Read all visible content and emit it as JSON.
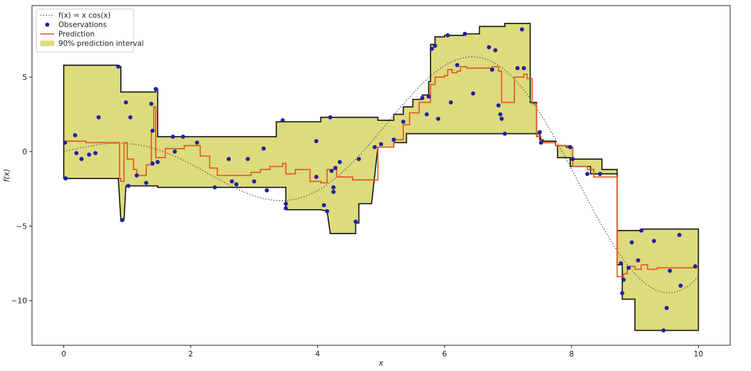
{
  "chart_data": {
    "type": "line",
    "xlabel": "x",
    "ylabel": "f(x)",
    "xlim": [
      -0.5,
      10.5
    ],
    "ylim": [
      -13,
      9.8
    ],
    "x_ticks": [
      0,
      2,
      4,
      6,
      8,
      10
    ],
    "y_ticks": [
      -10,
      -5,
      0,
      5
    ],
    "x_tick_labels": [
      "0",
      "2",
      "4",
      "6",
      "8",
      "10"
    ],
    "y_tick_labels": [
      "−10",
      "−5",
      "0",
      "5"
    ],
    "grid": false,
    "legend_placement": "top-left",
    "legend": [
      {
        "label": "f(x) = x cos(x)",
        "style": "dotted-line",
        "color": "#555555"
      },
      {
        "label": "Observations",
        "style": "marker",
        "color": "#1f1fa8"
      },
      {
        "label": "Prediction",
        "style": "line",
        "color": "#e0531c"
      },
      {
        "label": "90% prediction interval",
        "style": "fill",
        "color": "#dddb7c"
      }
    ],
    "true_function": {
      "name": "f(x) = x cos(x)",
      "x_range": [
        0,
        10
      ]
    },
    "observations": [
      [
        0.02,
        0.6
      ],
      [
        0.03,
        -1.8
      ],
      [
        0.18,
        1.1
      ],
      [
        0.2,
        -0.1
      ],
      [
        0.28,
        -0.5
      ],
      [
        0.4,
        -0.2
      ],
      [
        0.5,
        -0.1
      ],
      [
        0.55,
        2.3
      ],
      [
        0.86,
        5.7
      ],
      [
        0.92,
        -4.6
      ],
      [
        0.98,
        3.3
      ],
      [
        1.02,
        -2.3
      ],
      [
        1.05,
        2.3
      ],
      [
        1.15,
        -1.6
      ],
      [
        1.3,
        -2.1
      ],
      [
        1.38,
        3.2
      ],
      [
        1.4,
        -0.8
      ],
      [
        1.4,
        1.4
      ],
      [
        1.45,
        4.2
      ],
      [
        1.48,
        -0.7
      ],
      [
        1.72,
        1.0
      ],
      [
        1.75,
        0.0
      ],
      [
        1.88,
        1.0
      ],
      [
        2.1,
        0.6
      ],
      [
        2.38,
        -2.4
      ],
      [
        2.6,
        -0.5
      ],
      [
        2.65,
        -2.0
      ],
      [
        2.72,
        -2.2
      ],
      [
        2.9,
        -0.5
      ],
      [
        3.0,
        -2.0
      ],
      [
        3.15,
        0.2
      ],
      [
        3.2,
        -2.6
      ],
      [
        3.45,
        2.1
      ],
      [
        3.5,
        -3.5
      ],
      [
        3.5,
        -3.8
      ],
      [
        3.98,
        0.7
      ],
      [
        3.98,
        -1.7
      ],
      [
        4.1,
        -3.6
      ],
      [
        4.15,
        -4.0
      ],
      [
        4.2,
        2.3
      ],
      [
        4.22,
        -1.3
      ],
      [
        4.25,
        -2.4
      ],
      [
        4.25,
        -2.7
      ],
      [
        4.28,
        -1.1
      ],
      [
        4.35,
        -0.7
      ],
      [
        4.6,
        -4.7
      ],
      [
        4.65,
        -0.5
      ],
      [
        4.9,
        0.3
      ],
      [
        5.0,
        0.5
      ],
      [
        5.2,
        0.8
      ],
      [
        5.35,
        2.0
      ],
      [
        5.65,
        3.6
      ],
      [
        5.72,
        2.5
      ],
      [
        5.75,
        3.7
      ],
      [
        5.8,
        6.9
      ],
      [
        5.85,
        7.1
      ],
      [
        5.9,
        2.2
      ],
      [
        6.05,
        7.8
      ],
      [
        6.1,
        3.3
      ],
      [
        6.2,
        5.8
      ],
      [
        6.32,
        7.9
      ],
      [
        6.45,
        3.9
      ],
      [
        6.7,
        7.0
      ],
      [
        6.75,
        5.5
      ],
      [
        6.8,
        6.8
      ],
      [
        6.85,
        3.1
      ],
      [
        6.88,
        2.5
      ],
      [
        6.9,
        2.2
      ],
      [
        6.95,
        1.2
      ],
      [
        7.15,
        5.6
      ],
      [
        7.22,
        8.2
      ],
      [
        7.25,
        5.6
      ],
      [
        7.5,
        1.3
      ],
      [
        7.52,
        0.6
      ],
      [
        7.98,
        0.3
      ],
      [
        8.02,
        -0.5
      ],
      [
        8.25,
        -1.5
      ],
      [
        8.45,
        -1.5
      ],
      [
        8.78,
        -7.5
      ],
      [
        8.8,
        -9.5
      ],
      [
        8.82,
        -8.6
      ],
      [
        8.9,
        -7.8
      ],
      [
        8.95,
        -6.1
      ],
      [
        9.05,
        -7.3
      ],
      [
        9.1,
        -5.3
      ],
      [
        9.3,
        -6.0
      ],
      [
        9.45,
        -12.0
      ],
      [
        9.5,
        -10.5
      ],
      [
        9.55,
        -8.0
      ],
      [
        9.7,
        -5.6
      ],
      [
        9.72,
        -9.0
      ],
      [
        9.95,
        -7.7
      ]
    ],
    "prediction_interval": {
      "upper": [
        [
          0.0,
          5.8
        ],
        [
          0.86,
          5.8
        ],
        [
          0.86,
          5.7
        ],
        [
          0.9,
          5.7
        ],
        [
          0.9,
          4.0
        ],
        [
          1.45,
          4.0
        ],
        [
          1.45,
          4.2
        ],
        [
          1.48,
          4.2
        ],
        [
          1.48,
          1.0
        ],
        [
          3.35,
          1.0
        ],
        [
          3.35,
          2.0
        ],
        [
          4.05,
          2.0
        ],
        [
          4.05,
          2.3
        ],
        [
          4.95,
          2.3
        ],
        [
          4.95,
          2.1
        ],
        [
          5.2,
          2.1
        ],
        [
          5.2,
          2.5
        ],
        [
          5.35,
          2.5
        ],
        [
          5.35,
          3.0
        ],
        [
          5.5,
          3.0
        ],
        [
          5.5,
          3.5
        ],
        [
          5.65,
          3.5
        ],
        [
          5.65,
          3.8
        ],
        [
          5.75,
          3.8
        ],
        [
          5.75,
          4.7
        ],
        [
          5.78,
          4.7
        ],
        [
          5.78,
          7.2
        ],
        [
          5.85,
          7.2
        ],
        [
          5.85,
          7.7
        ],
        [
          6.0,
          7.7
        ],
        [
          6.0,
          7.8
        ],
        [
          6.3,
          7.8
        ],
        [
          6.3,
          7.9
        ],
        [
          6.55,
          7.9
        ],
        [
          6.55,
          8.4
        ],
        [
          6.95,
          8.4
        ],
        [
          6.95,
          8.6
        ],
        [
          7.35,
          8.6
        ],
        [
          7.35,
          3.3
        ],
        [
          7.45,
          3.3
        ],
        [
          7.45,
          1.0
        ],
        [
          7.5,
          1.0
        ],
        [
          7.5,
          0.8
        ],
        [
          7.55,
          0.8
        ],
        [
          7.55,
          0.7
        ],
        [
          7.75,
          0.7
        ],
        [
          7.75,
          0.4
        ],
        [
          7.92,
          0.4
        ],
        [
          7.92,
          0.3
        ],
        [
          8.02,
          0.3
        ],
        [
          8.02,
          -0.5
        ],
        [
          8.48,
          -0.5
        ],
        [
          8.48,
          -1.2
        ],
        [
          8.72,
          -1.2
        ],
        [
          8.72,
          -5.3
        ],
        [
          9.1,
          -5.3
        ],
        [
          9.1,
          -5.2
        ],
        [
          10.0,
          -5.2
        ]
      ],
      "lower": [
        [
          0.0,
          -1.8
        ],
        [
          0.86,
          -1.8
        ],
        [
          0.9,
          -4.6
        ],
        [
          0.95,
          -4.6
        ],
        [
          0.98,
          -2.3
        ],
        [
          1.48,
          -2.3
        ],
        [
          1.48,
          -2.4
        ],
        [
          3.5,
          -2.4
        ],
        [
          3.5,
          -3.9
        ],
        [
          4.05,
          -3.9
        ],
        [
          4.15,
          -4.0
        ],
        [
          4.2,
          -5.5
        ],
        [
          4.6,
          -5.5
        ],
        [
          4.6,
          -4.8
        ],
        [
          4.65,
          -4.8
        ],
        [
          4.65,
          -3.5
        ],
        [
          4.85,
          -3.5
        ],
        [
          4.95,
          0.3
        ],
        [
          5.2,
          0.3
        ],
        [
          5.2,
          0.6
        ],
        [
          5.4,
          0.6
        ],
        [
          5.4,
          1.2
        ],
        [
          7.5,
          1.2
        ],
        [
          7.52,
          0.6
        ],
        [
          7.75,
          0.6
        ],
        [
          7.75,
          0.4
        ],
        [
          7.78,
          0.4
        ],
        [
          7.78,
          -0.4
        ],
        [
          7.98,
          -0.4
        ],
        [
          7.98,
          -1.0
        ],
        [
          8.3,
          -1.0
        ],
        [
          8.3,
          -1.5
        ],
        [
          8.72,
          -1.5
        ],
        [
          8.72,
          -7.6
        ],
        [
          8.8,
          -7.6
        ],
        [
          8.8,
          -9.9
        ],
        [
          9.0,
          -9.9
        ],
        [
          9.0,
          -12.0
        ],
        [
          10.0,
          -12.0
        ]
      ]
    },
    "prediction": [
      [
        0.0,
        0.7
      ],
      [
        0.35,
        0.7
      ],
      [
        0.35,
        0.6
      ],
      [
        0.88,
        0.6
      ],
      [
        0.88,
        -1.8
      ],
      [
        0.9,
        -1.8
      ],
      [
        0.9,
        -2.0
      ],
      [
        0.95,
        -2.0
      ],
      [
        0.95,
        0.6
      ],
      [
        1.0,
        0.6
      ],
      [
        1.0,
        -0.5
      ],
      [
        1.1,
        -0.5
      ],
      [
        1.1,
        -1.2
      ],
      [
        1.15,
        -1.2
      ],
      [
        1.15,
        -1.6
      ],
      [
        1.3,
        -1.6
      ],
      [
        1.3,
        -0.9
      ],
      [
        1.38,
        -0.9
      ],
      [
        1.38,
        1.4
      ],
      [
        1.42,
        1.4
      ],
      [
        1.42,
        3.0
      ],
      [
        1.45,
        3.0
      ],
      [
        1.45,
        -0.4
      ],
      [
        1.6,
        -0.4
      ],
      [
        1.6,
        0.2
      ],
      [
        1.9,
        0.2
      ],
      [
        1.9,
        0.3
      ],
      [
        1.9,
        0.3
      ],
      [
        1.9,
        0.4
      ],
      [
        1.95,
        0.4
      ],
      [
        1.95,
        0.3
      ],
      [
        1.95,
        0.3
      ],
      [
        1.95,
        0.4
      ],
      [
        1.9,
        0.4
      ],
      [
        1.9,
        0.3
      ],
      [
        1.92,
        0.3
      ],
      [
        1.92,
        0.5
      ],
      [
        1.9,
        0.5
      ],
      [
        1.9,
        0.4
      ],
      [
        1.9,
        0.4
      ],
      [
        1.9,
        0.3
      ],
      [
        1.9,
        0.3
      ],
      [
        1.9,
        0.5
      ],
      [
        1.9,
        0.5
      ],
      [
        1.9,
        0.4
      ],
      [
        1.9,
        0.4
      ],
      [
        1.9,
        0.3
      ],
      [
        1.9,
        0.3
      ],
      [
        1.9,
        0.4
      ],
      [
        1.9,
        0.4
      ],
      [
        1.9,
        0.4
      ],
      [
        2.0,
        0.4
      ],
      [
        2.0,
        0.3
      ],
      [
        2.0,
        0.3
      ],
      [
        2.0,
        0.4
      ],
      [
        2.0,
        0.4
      ],
      [
        2.0,
        0.4
      ],
      [
        2.0,
        0.2
      ],
      [
        2.0,
        0.2
      ],
      [
        2.0,
        0.4
      ],
      [
        2.0,
        0.4
      ],
      [
        2.0,
        0.4
      ],
      [
        2.0,
        0.4
      ]
    ],
    "prediction_steps": [
      [
        0.0,
        0.7
      ],
      [
        0.35,
        0.6
      ],
      [
        0.88,
        -1.8
      ],
      [
        0.9,
        -2.0
      ],
      [
        0.95,
        0.6
      ],
      [
        1.0,
        -0.5
      ],
      [
        1.1,
        -1.2
      ],
      [
        1.15,
        -1.6
      ],
      [
        1.3,
        -0.9
      ],
      [
        1.38,
        1.4
      ],
      [
        1.42,
        3.0
      ],
      [
        1.45,
        -0.4
      ],
      [
        1.6,
        0.2
      ],
      [
        1.9,
        0.4
      ],
      [
        2.15,
        -0.3
      ],
      [
        2.3,
        -1.1
      ],
      [
        2.42,
        -1.6
      ],
      [
        2.95,
        -1.4
      ],
      [
        3.1,
        -1.2
      ],
      [
        3.25,
        -1.0
      ],
      [
        3.45,
        -0.8
      ],
      [
        3.5,
        -1.5
      ],
      [
        3.65,
        -1.2
      ],
      [
        3.88,
        -2.0
      ],
      [
        4.05,
        -2.1
      ],
      [
        4.15,
        -1.2
      ],
      [
        4.3,
        -1.7
      ],
      [
        4.55,
        -1.9
      ],
      [
        4.95,
        0.3
      ],
      [
        5.2,
        0.8
      ],
      [
        5.35,
        1.8
      ],
      [
        5.45,
        2.6
      ],
      [
        5.6,
        3.3
      ],
      [
        5.78,
        4.5
      ],
      [
        5.85,
        5.0
      ],
      [
        6.0,
        5.1
      ],
      [
        6.05,
        5.5
      ],
      [
        6.12,
        5.3
      ],
      [
        6.2,
        5.4
      ],
      [
        6.25,
        5.7
      ],
      [
        6.35,
        5.6
      ],
      [
        6.75,
        5.7
      ],
      [
        6.85,
        5.4
      ],
      [
        6.9,
        3.3
      ],
      [
        7.1,
        5.0
      ],
      [
        7.25,
        5.2
      ],
      [
        7.3,
        4.9
      ],
      [
        7.38,
        3.2
      ],
      [
        7.45,
        1.0
      ],
      [
        7.52,
        0.6
      ],
      [
        7.75,
        0.4
      ],
      [
        7.98,
        0.3
      ],
      [
        8.02,
        -1.0
      ],
      [
        8.25,
        -1.2
      ],
      [
        8.35,
        -1.7
      ],
      [
        8.72,
        -8.4
      ],
      [
        8.82,
        -8.2
      ],
      [
        8.88,
        -7.7
      ],
      [
        9.0,
        -7.9
      ],
      [
        9.1,
        -7.6
      ],
      [
        9.2,
        -7.9
      ],
      [
        9.35,
        -7.8
      ],
      [
        10.0,
        -7.8
      ]
    ]
  },
  "colors": {
    "interval_fill": "#dddb7c",
    "interval_edge": "#111111",
    "prediction": "#e0531c",
    "observation": "#1f1fa8",
    "true_function": "#555555"
  }
}
